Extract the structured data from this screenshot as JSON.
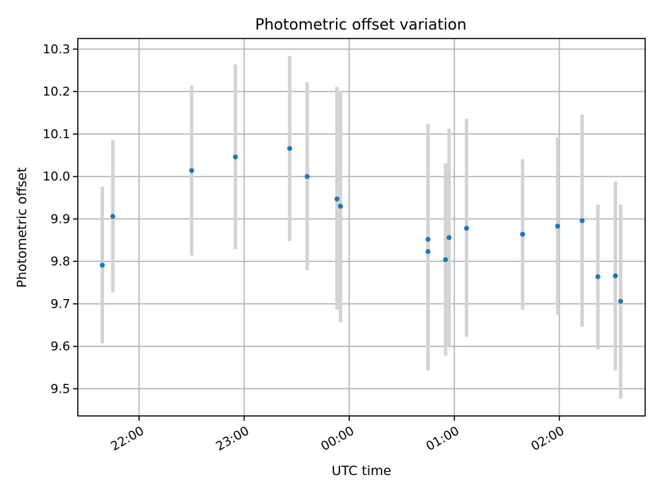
{
  "chart_data": {
    "type": "scatter",
    "title": "Photometric offset variation",
    "xlabel": "UTC time",
    "ylabel": "Photometric offset",
    "x_ticks": [
      "22:00",
      "23:00",
      "00:00",
      "01:00",
      "02:00"
    ],
    "y_ticks": [
      "9.5",
      "9.6",
      "9.7",
      "9.8",
      "9.9",
      "10.0",
      "10.1",
      "10.2",
      "10.3"
    ],
    "grid": true,
    "point_color": "#1f77b4",
    "error_color": "#d3d3d3",
    "series": [
      {
        "points": [
          {
            "t": "21:39",
            "y": 9.791,
            "lo": 9.607,
            "hi": 9.976
          },
          {
            "t": "21:45",
            "y": 9.906,
            "lo": 9.727,
            "hi": 10.086
          },
          {
            "t": "22:30",
            "y": 10.014,
            "lo": 9.814,
            "hi": 10.214
          },
          {
            "t": "22:55",
            "y": 10.046,
            "lo": 9.829,
            "hi": 10.264
          },
          {
            "t": "23:26",
            "y": 10.066,
            "lo": 9.848,
            "hi": 10.284
          },
          {
            "t": "23:36",
            "y": 10.0,
            "lo": 9.779,
            "hi": 10.222
          },
          {
            "t": "23:53",
            "y": 9.947,
            "lo": 9.686,
            "hi": 10.211
          },
          {
            "t": "23:55",
            "y": 9.93,
            "lo": 9.657,
            "hi": 10.201
          },
          {
            "t": "00:45",
            "y": 9.852,
            "lo": 9.543,
            "hi": 10.124
          },
          {
            "t": "00:45",
            "y": 9.823,
            "lo": 9.543,
            "hi": 10.124
          },
          {
            "t": "00:55",
            "y": 9.804,
            "lo": 9.578,
            "hi": 10.031
          },
          {
            "t": "00:57",
            "y": 9.856,
            "lo": 9.6,
            "hi": 10.113
          },
          {
            "t": "01:07",
            "y": 9.878,
            "lo": 9.622,
            "hi": 10.136
          },
          {
            "t": "01:39",
            "y": 9.864,
            "lo": 9.686,
            "hi": 10.041
          },
          {
            "t": "01:59",
            "y": 9.883,
            "lo": 9.675,
            "hi": 10.092
          },
          {
            "t": "02:13",
            "y": 9.896,
            "lo": 9.646,
            "hi": 10.145
          },
          {
            "t": "02:22",
            "y": 9.764,
            "lo": 9.593,
            "hi": 9.934
          },
          {
            "t": "02:32",
            "y": 9.766,
            "lo": 9.543,
            "hi": 9.988
          },
          {
            "t": "02:35",
            "y": 9.706,
            "lo": 9.476,
            "hi": 9.934
          }
        ]
      }
    ],
    "xlim": [
      "21:25",
      "02:49"
    ],
    "ylim": [
      9.436,
      10.325
    ]
  }
}
